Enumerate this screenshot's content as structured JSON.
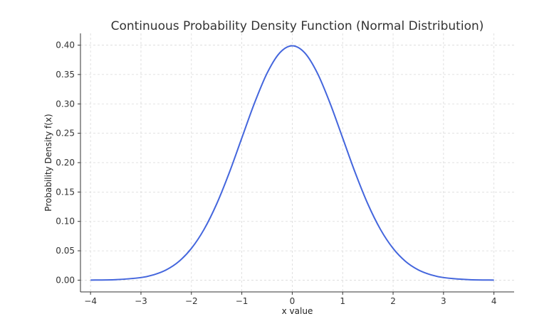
{
  "chart_data": {
    "type": "line",
    "title": "Continuous Probability Density Function (Normal Distribution)",
    "xlabel": "x value",
    "ylabel": "Probability Density f(x)",
    "xlim": [
      -4.2,
      4.4
    ],
    "ylim": [
      -0.02,
      0.42
    ],
    "xticks": [
      -4,
      -3,
      -2,
      -1,
      0,
      1,
      2,
      3,
      4
    ],
    "xtick_labels": [
      "−4",
      "−3",
      "−2",
      "−1",
      "0",
      "1",
      "2",
      "3",
      "4"
    ],
    "yticks": [
      0.0,
      0.05,
      0.1,
      0.15,
      0.2,
      0.25,
      0.3,
      0.35,
      0.4
    ],
    "ytick_labels": [
      "0.00",
      "0.05",
      "0.10",
      "0.15",
      "0.20",
      "0.25",
      "0.30",
      "0.35",
      "0.40"
    ],
    "grid": true,
    "series": [
      {
        "color": "#4466dd",
        "x": [
          -4.0,
          -3.5,
          -3.0,
          -2.75,
          -2.5,
          -2.25,
          -2.0,
          -1.75,
          -1.5,
          -1.25,
          -1.0,
          -0.75,
          -0.5,
          -0.25,
          0.0,
          0.25,
          0.5,
          0.75,
          1.0,
          1.25,
          1.5,
          1.75,
          2.0,
          2.25,
          2.5,
          2.75,
          3.0,
          3.5,
          4.0
        ],
        "y": [
          0.0001,
          0.0009,
          0.0044,
          0.0091,
          0.0175,
          0.0317,
          0.054,
          0.0863,
          0.1295,
          0.1826,
          0.242,
          0.3011,
          0.3521,
          0.3867,
          0.3989,
          0.3867,
          0.3521,
          0.3011,
          0.242,
          0.1826,
          0.1295,
          0.0863,
          0.054,
          0.0317,
          0.0175,
          0.0091,
          0.0044,
          0.0009,
          0.0001
        ]
      }
    ]
  }
}
